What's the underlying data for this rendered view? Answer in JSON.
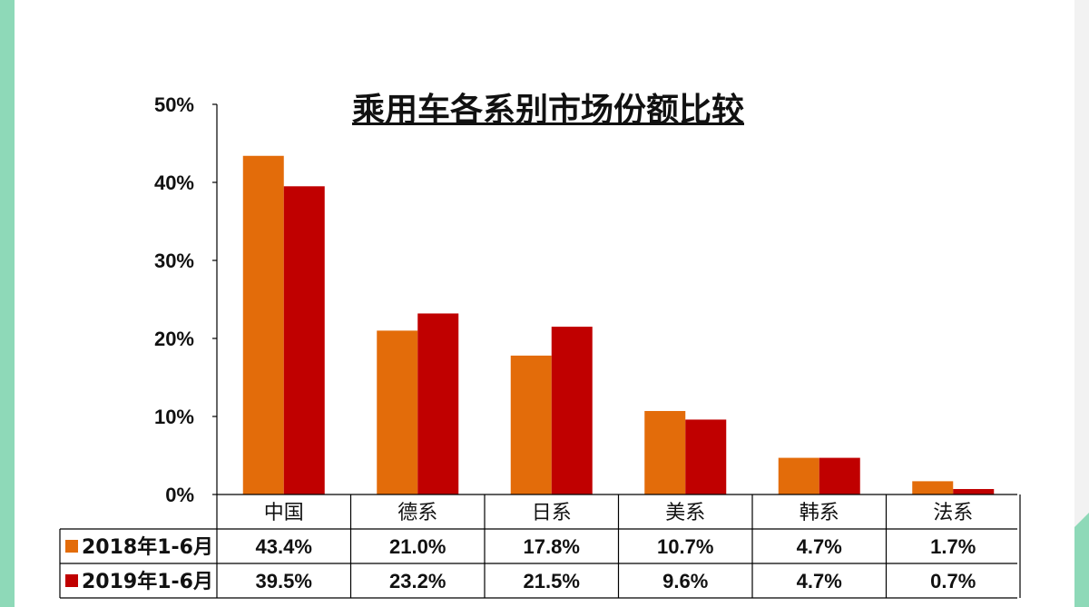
{
  "chart_data": {
    "type": "bar",
    "title": "乘用车各系别市场份额比较",
    "categories": [
      "中国",
      "德系",
      "日系",
      "美系",
      "韩系",
      "法系"
    ],
    "series": [
      {
        "name": "2018年1-6月",
        "values": [
          43.4,
          21.0,
          17.8,
          10.7,
          4.7,
          1.7
        ],
        "labels": [
          "43.4%",
          "21.0%",
          "17.8%",
          "10.7%",
          "4.7%",
          "1.7%"
        ]
      },
      {
        "name": "2019年1-6月",
        "values": [
          39.5,
          23.2,
          21.5,
          9.6,
          4.7,
          0.7
        ],
        "labels": [
          "39.5%",
          "23.2%",
          "21.5%",
          "9.6%",
          "4.7%",
          "0.7%"
        ]
      }
    ],
    "yticks": [
      "0%",
      "10%",
      "20%",
      "30%",
      "40%",
      "50%"
    ],
    "ylim": [
      0,
      50
    ],
    "xlabel": "",
    "ylabel": "",
    "grid": false,
    "legend": "data table below chart",
    "colors": {
      "series_2018": "#e36c0a",
      "series_2019": "#c00000"
    }
  }
}
